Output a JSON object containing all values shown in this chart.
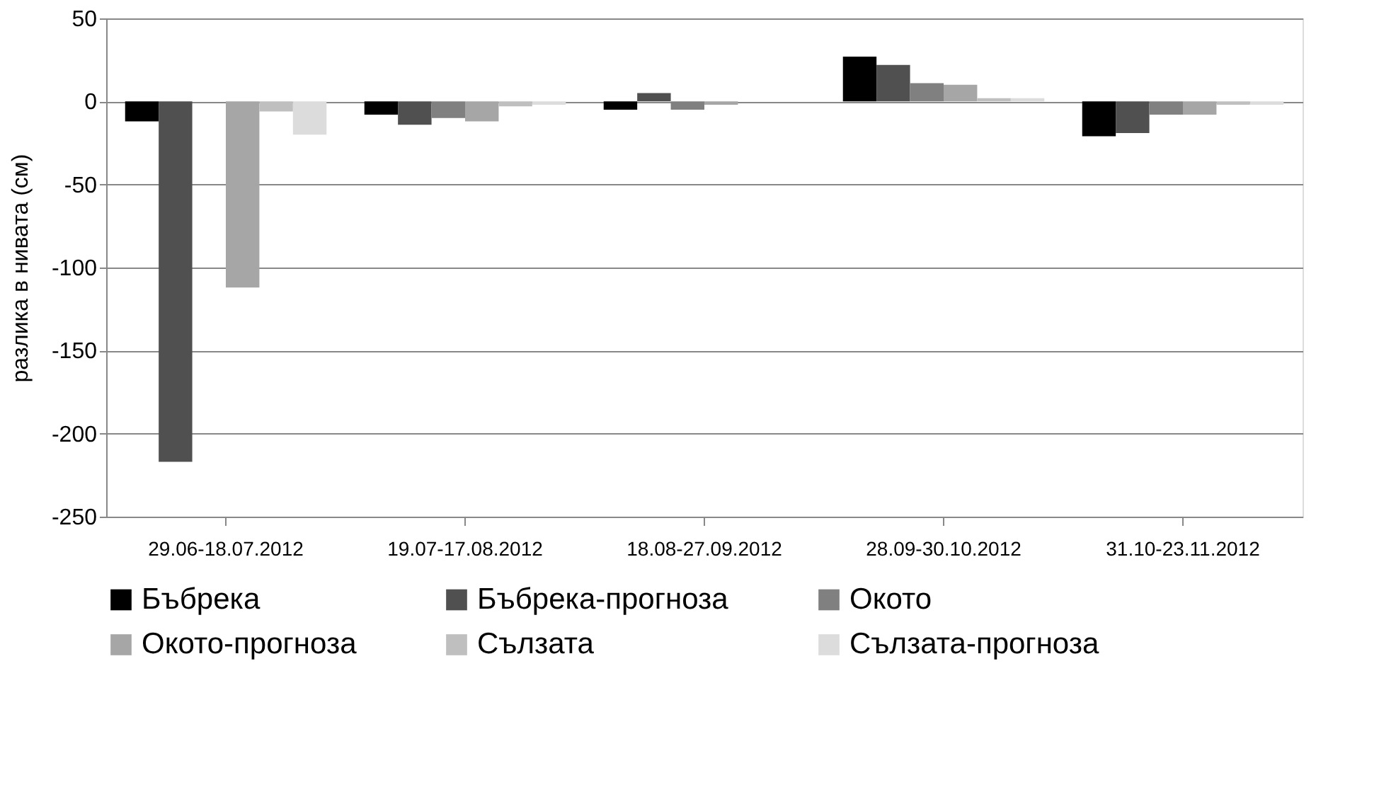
{
  "chart_data": {
    "type": "bar",
    "ylabel": "разлика в нивата (см)",
    "categories": [
      "29.06-18.07.2012",
      "19.07-17.08.2012",
      "18.08-27.09.2012",
      "28.09-30.10.2012",
      "31.10-23.11.2012"
    ],
    "series": [
      {
        "name": "Бъбрека",
        "color": "#000000",
        "values": [
          -12,
          -8,
          -5,
          27,
          -21
        ]
      },
      {
        "name": "Бъбрека-прогноза",
        "color": "#505050",
        "values": [
          -217,
          -14,
          5,
          22,
          -19
        ]
      },
      {
        "name": "Окото",
        "color": "#808080",
        "values": [
          0,
          -10,
          -5,
          11,
          -8
        ]
      },
      {
        "name": "Окото-прогноза",
        "color": "#a6a6a6",
        "values": [
          -112,
          -12,
          -2,
          10,
          -8
        ]
      },
      {
        "name": "Сълзата",
        "color": "#bfbfbf",
        "values": [
          -6,
          -3,
          0,
          2,
          -2
        ]
      },
      {
        "name": "Сълзата-прогноза",
        "color": "#dcdcdc",
        "values": [
          -20,
          -2,
          0,
          2,
          -2
        ]
      }
    ],
    "ylim": [
      -250,
      50
    ],
    "yticks": [
      -250,
      -200,
      -150,
      -100,
      -50,
      0,
      50
    ],
    "grid": "y",
    "legend": "bottom"
  }
}
